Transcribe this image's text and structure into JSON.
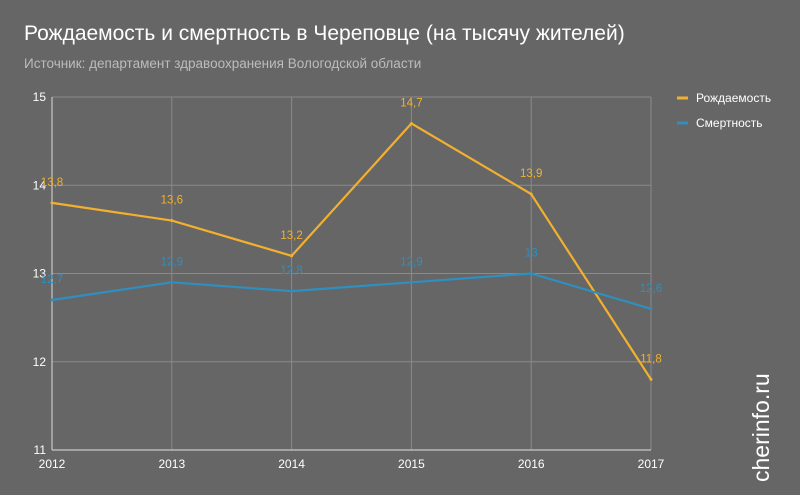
{
  "title": "Рождаемость и смертность в Череповце (на тысячу жителей)",
  "subtitle": "Источник: департамент здравоохранения Вологодской области",
  "watermark": "cherinfo.ru",
  "colors": {
    "background": "#666666",
    "grid": "#8a8a8a",
    "axis": "#c8c8c8",
    "births": "#f2b02f",
    "deaths": "#2e8fc0"
  },
  "chart_data": {
    "type": "line",
    "title": "Рождаемость и смертность в Череповце (на тысячу жителей)",
    "subtitle": "Источник: департамент здравоохранения Вологодской области",
    "x": [
      "2012",
      "2013",
      "2014",
      "2015",
      "2016",
      "2017"
    ],
    "ylim": [
      11,
      15
    ],
    "yticks": [
      "11",
      "12",
      "13",
      "14",
      "15"
    ],
    "grid": true,
    "legend_position": "top-right",
    "series": [
      {
        "name": "Рождаемость",
        "color": "#f2b02f",
        "values": [
          13.8,
          13.6,
          13.2,
          14.7,
          13.9,
          11.8
        ],
        "labels": [
          "13,8",
          "13,6",
          "13,2",
          "14,7",
          "13,9",
          "11,8"
        ]
      },
      {
        "name": "Смертность",
        "color": "#2e8fc0",
        "values": [
          12.7,
          12.9,
          12.8,
          12.9,
          13.0,
          12.6
        ],
        "labels": [
          "12,7",
          "12,9",
          "12,8",
          "12,9",
          "13",
          "12,6"
        ]
      }
    ]
  }
}
